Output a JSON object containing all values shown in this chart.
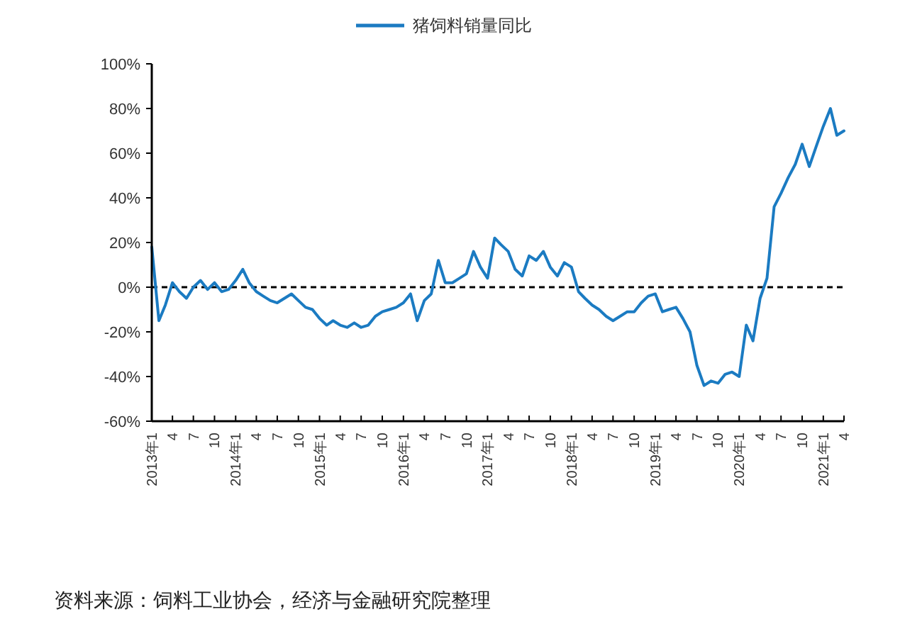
{
  "chart_data": {
    "type": "line",
    "x": [
      "2013-01",
      "2013-02",
      "2013-03",
      "2013-04",
      "2013-05",
      "2013-06",
      "2013-07",
      "2013-08",
      "2013-09",
      "2013-10",
      "2013-11",
      "2013-12",
      "2014-01",
      "2014-02",
      "2014-03",
      "2014-04",
      "2014-05",
      "2014-06",
      "2014-07",
      "2014-08",
      "2014-09",
      "2014-10",
      "2014-11",
      "2014-12",
      "2015-01",
      "2015-02",
      "2015-03",
      "2015-04",
      "2015-05",
      "2015-06",
      "2015-07",
      "2015-08",
      "2015-09",
      "2015-10",
      "2015-11",
      "2015-12",
      "2016-01",
      "2016-02",
      "2016-03",
      "2016-04",
      "2016-05",
      "2016-06",
      "2016-07",
      "2016-08",
      "2016-09",
      "2016-10",
      "2016-11",
      "2016-12",
      "2017-01",
      "2017-02",
      "2017-03",
      "2017-04",
      "2017-05",
      "2017-06",
      "2017-07",
      "2017-08",
      "2017-09",
      "2017-10",
      "2017-11",
      "2017-12",
      "2018-01",
      "2018-02",
      "2018-03",
      "2018-04",
      "2018-05",
      "2018-06",
      "2018-07",
      "2018-08",
      "2018-09",
      "2018-10",
      "2018-11",
      "2018-12",
      "2019-01",
      "2019-02",
      "2019-03",
      "2019-04",
      "2019-05",
      "2019-06",
      "2019-07",
      "2019-08",
      "2019-09",
      "2019-10",
      "2019-11",
      "2019-12",
      "2020-01",
      "2020-02",
      "2020-03",
      "2020-04",
      "2020-05",
      "2020-06",
      "2020-07",
      "2020-08",
      "2020-09",
      "2020-10",
      "2020-11",
      "2020-12",
      "2021-01",
      "2021-02",
      "2021-03",
      "2021-04"
    ],
    "series": [
      {
        "name": "猪饲料销量同比",
        "color": "#1b7bc2",
        "values": [
          18,
          -15,
          -8,
          2,
          -2,
          -5,
          0,
          3,
          -1,
          2,
          -2,
          -1,
          3,
          8,
          2,
          -2,
          -4,
          -6,
          -7,
          -5,
          -3,
          -6,
          -9,
          -10,
          -14,
          -17,
          -15,
          -17,
          -18,
          -16,
          -18,
          -17,
          -13,
          -11,
          -10,
          -9,
          -7,
          -3,
          -15,
          -6,
          -3,
          12,
          2,
          2,
          4,
          6,
          16,
          9,
          4,
          22,
          19,
          16,
          8,
          5,
          14,
          12,
          16,
          9,
          5,
          11,
          9,
          -2,
          -5,
          -8,
          -10,
          -13,
          -15,
          -13,
          -11,
          -11,
          -7,
          -4,
          -3,
          -11,
          -10,
          -9,
          -14,
          -20,
          -35,
          -44,
          -42,
          -43,
          -39,
          -38,
          -40,
          -17,
          -24,
          -5,
          4,
          36,
          42,
          49,
          55,
          64,
          54,
          63,
          72,
          80,
          68,
          70
        ]
      }
    ],
    "xlim": [
      "2013-01",
      "2021-04"
    ],
    "xticks": [
      {
        "value": "2013-01",
        "label": "2013年1"
      },
      {
        "value": "2013-04",
        "label": "4"
      },
      {
        "value": "2013-07",
        "label": "7"
      },
      {
        "value": "2013-10",
        "label": "10"
      },
      {
        "value": "2014-01",
        "label": "2014年1"
      },
      {
        "value": "2014-04",
        "label": "4"
      },
      {
        "value": "2014-07",
        "label": "7"
      },
      {
        "value": "2014-10",
        "label": "10"
      },
      {
        "value": "2015-01",
        "label": "2015年1"
      },
      {
        "value": "2015-04",
        "label": "4"
      },
      {
        "value": "2015-07",
        "label": "7"
      },
      {
        "value": "2015-10",
        "label": "10"
      },
      {
        "value": "2016-01",
        "label": "2016年1"
      },
      {
        "value": "2016-04",
        "label": "4"
      },
      {
        "value": "2016-07",
        "label": "7"
      },
      {
        "value": "2016-10",
        "label": "10"
      },
      {
        "value": "2017-01",
        "label": "2017年1"
      },
      {
        "value": "2017-04",
        "label": "4"
      },
      {
        "value": "2017-07",
        "label": "7"
      },
      {
        "value": "2017-10",
        "label": "10"
      },
      {
        "value": "2018-01",
        "label": "2018年1"
      },
      {
        "value": "2018-04",
        "label": "4"
      },
      {
        "value": "2018-07",
        "label": "7"
      },
      {
        "value": "2018-10",
        "label": "10"
      },
      {
        "value": "2019-01",
        "label": "2019年1"
      },
      {
        "value": "2019-04",
        "label": "4"
      },
      {
        "value": "2019-07",
        "label": "7"
      },
      {
        "value": "2019-10",
        "label": "10"
      },
      {
        "value": "2020-01",
        "label": "2020年1"
      },
      {
        "value": "2020-04",
        "label": "4"
      },
      {
        "value": "2020-07",
        "label": "7"
      },
      {
        "value": "2020-10",
        "label": "10"
      },
      {
        "value": "2021-01",
        "label": "2021年1"
      },
      {
        "value": "2021-04",
        "label": "4"
      }
    ],
    "ylim": [
      -60,
      100
    ],
    "yticks": [
      {
        "value": -60,
        "label": "-60%"
      },
      {
        "value": -40,
        "label": "-40%"
      },
      {
        "value": -20,
        "label": "-20%"
      },
      {
        "value": 0,
        "label": "0%"
      },
      {
        "value": 20,
        "label": "20%"
      },
      {
        "value": 40,
        "label": "40%"
      },
      {
        "value": 60,
        "label": "60%"
      },
      {
        "value": 80,
        "label": "80%"
      },
      {
        "value": 100,
        "label": "100%"
      }
    ],
    "ref_lines": [
      {
        "axis": "y",
        "value": 0,
        "label": null,
        "color": "#000000",
        "line_style": "dashed"
      }
    ],
    "legend": "top",
    "line_style": "solid",
    "annotations": [
      "资料来源：饲料工业协会，经济与金融研究院整理"
    ]
  }
}
